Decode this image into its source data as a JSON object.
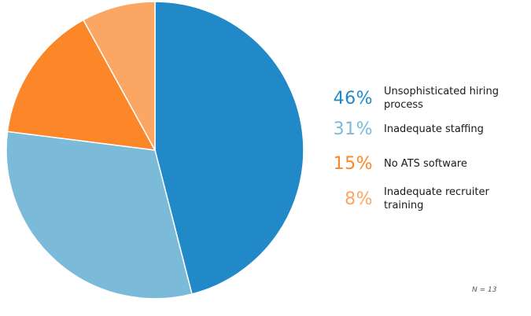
{
  "chart_data": {
    "type": "pie",
    "start_angle_deg": 0,
    "direction": "clockwise",
    "slices": [
      {
        "label_lines": [
          "Unsophisticated hiring",
          "process"
        ],
        "pct_text": "46%",
        "value": 46,
        "color": "#2189C8"
      },
      {
        "label_lines": [
          "Inadequate staffing"
        ],
        "pct_text": "31%",
        "value": 31,
        "color": "#7BBAD9"
      },
      {
        "label_lines": [
          "No ATS software"
        ],
        "pct_text": "15%",
        "value": 15,
        "color": "#FC8728"
      },
      {
        "label_lines": [
          "Inadequate recruiter",
          "training"
        ],
        "pct_text": "8%",
        "value": 8,
        "color": "#FCA664"
      }
    ],
    "legend_position": "right",
    "note": "N = 13"
  }
}
